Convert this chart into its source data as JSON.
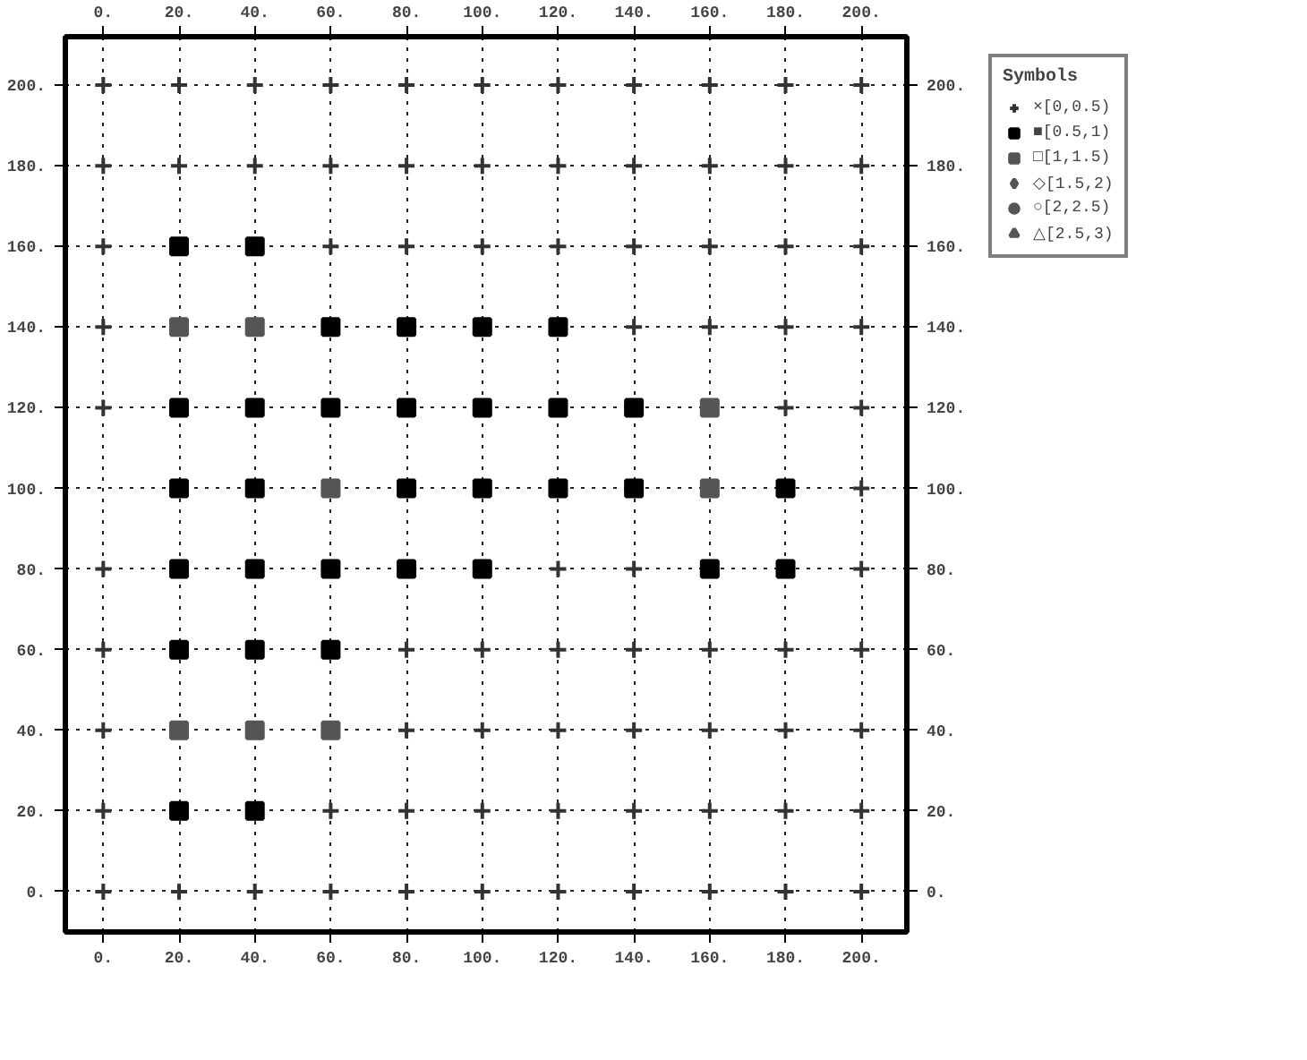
{
  "chart_data": {
    "type": "scatter",
    "legend_title": "Symbols",
    "legend": "right",
    "grid": true,
    "line_style": "dotted",
    "xlim": [
      -10,
      212
    ],
    "ylim": [
      -10,
      212
    ],
    "xticks": [
      {
        "value": 0,
        "label": "0."
      },
      {
        "value": 20,
        "label": "20."
      },
      {
        "value": 40,
        "label": "40."
      },
      {
        "value": 60,
        "label": "60."
      },
      {
        "value": 80,
        "label": "80."
      },
      {
        "value": 100,
        "label": "100."
      },
      {
        "value": 120,
        "label": "120."
      },
      {
        "value": 140,
        "label": "140."
      },
      {
        "value": 160,
        "label": "160."
      },
      {
        "value": 180,
        "label": "180."
      },
      {
        "value": 200,
        "label": "200."
      }
    ],
    "x2lim": [
      -10,
      212
    ],
    "x2ticks": [
      {
        "value": 0,
        "label": "0."
      },
      {
        "value": 20,
        "label": "20."
      },
      {
        "value": 40,
        "label": "40."
      },
      {
        "value": 60,
        "label": "60."
      },
      {
        "value": 80,
        "label": "80."
      },
      {
        "value": 100,
        "label": "100."
      },
      {
        "value": 120,
        "label": "120."
      },
      {
        "value": 140,
        "label": "140."
      },
      {
        "value": 160,
        "label": "160."
      },
      {
        "value": 180,
        "label": "180."
      },
      {
        "value": 200,
        "label": "200."
      }
    ],
    "yticks": [
      {
        "value": 0,
        "label": "0."
      },
      {
        "value": 20,
        "label": "20."
      },
      {
        "value": 40,
        "label": "40."
      },
      {
        "value": 60,
        "label": "60."
      },
      {
        "value": 80,
        "label": "80."
      },
      {
        "value": 100,
        "label": "100."
      },
      {
        "value": 120,
        "label": "120."
      },
      {
        "value": 140,
        "label": "140."
      },
      {
        "value": 160,
        "label": "160."
      },
      {
        "value": 180,
        "label": "180."
      },
      {
        "value": 200,
        "label": "200."
      }
    ],
    "y2lim": [
      -10,
      212
    ],
    "y2ticks": [
      {
        "value": 0,
        "label": "0."
      },
      {
        "value": 20,
        "label": "20."
      },
      {
        "value": 40,
        "label": "40."
      },
      {
        "value": 60,
        "label": "60."
      },
      {
        "value": 80,
        "label": "80."
      },
      {
        "value": 100,
        "label": "100."
      },
      {
        "value": 120,
        "label": "120."
      },
      {
        "value": 140,
        "label": "140."
      },
      {
        "value": 160,
        "label": "160."
      },
      {
        "value": 180,
        "label": "180."
      },
      {
        "value": 200,
        "label": "200."
      }
    ],
    "series": [
      {
        "name": "×[0,0.5)",
        "color": "#333333",
        "marker": "cross",
        "x": [
          0,
          20,
          40,
          60,
          80,
          100,
          120,
          140,
          160,
          180,
          200,
          0,
          20,
          40,
          60,
          80,
          100,
          120,
          140,
          160,
          180,
          200,
          0,
          60,
          80,
          100,
          120,
          140,
          160,
          180,
          200,
          0,
          140,
          160,
          180,
          200,
          0,
          180,
          200,
          200,
          0,
          120,
          140,
          200,
          0,
          80,
          100,
          120,
          140,
          160,
          180,
          200,
          0,
          80,
          100,
          120,
          140,
          160,
          180,
          200,
          0,
          60,
          80,
          100,
          120,
          140,
          160,
          180,
          200,
          0,
          20,
          40,
          60,
          80,
          100,
          120,
          140,
          160,
          180,
          200
        ],
        "values": [
          200,
          200,
          200,
          200,
          200,
          200,
          200,
          200,
          200,
          200,
          200,
          180,
          180,
          180,
          180,
          180,
          180,
          180,
          180,
          180,
          180,
          180,
          160,
          160,
          160,
          160,
          160,
          160,
          160,
          160,
          160,
          140,
          140,
          140,
          140,
          140,
          120,
          120,
          120,
          100,
          80,
          80,
          80,
          80,
          60,
          60,
          60,
          60,
          60,
          60,
          60,
          60,
          40,
          40,
          40,
          40,
          40,
          40,
          40,
          40,
          20,
          20,
          20,
          20,
          20,
          20,
          20,
          20,
          20,
          0,
          0,
          0,
          0,
          0,
          0,
          0,
          0,
          0,
          0,
          0
        ]
      },
      {
        "name": "■[0.5,1)",
        "color": "#000000",
        "marker": "square",
        "x": [
          20,
          40,
          60,
          80,
          100,
          120,
          20,
          40,
          60,
          80,
          100,
          120,
          140,
          20,
          40,
          80,
          100,
          120,
          140,
          180,
          20,
          40,
          60,
          80,
          100,
          160,
          180,
          20,
          40,
          60,
          20,
          40
        ],
        "values": [
          160,
          160,
          140,
          140,
          140,
          140,
          120,
          120,
          120,
          120,
          120,
          120,
          120,
          100,
          100,
          100,
          100,
          100,
          100,
          100,
          80,
          80,
          80,
          80,
          80,
          80,
          80,
          60,
          60,
          60,
          20,
          20
        ]
      },
      {
        "name": "□[1,1.5)",
        "color": "#555555",
        "marker": "square",
        "x": [
          20,
          40,
          160,
          60,
          160,
          20,
          40,
          60
        ],
        "values": [
          140,
          140,
          120,
          100,
          100,
          40,
          40,
          40
        ]
      },
      {
        "name": "◇[1.5,2)",
        "color": "#555555",
        "marker": "diamond"
      },
      {
        "name": "○[2,2.5)",
        "color": "#555555",
        "marker": "circle"
      },
      {
        "name": "△[2.5,3)",
        "color": "#555555",
        "marker": "triangle"
      }
    ]
  }
}
